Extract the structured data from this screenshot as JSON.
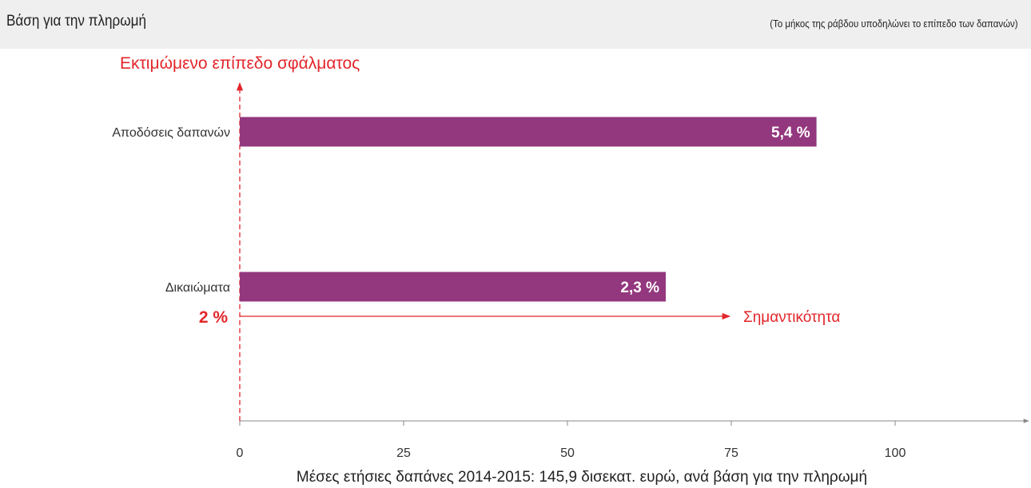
{
  "header": {
    "title": "Βάση για την πληρωμή",
    "note": "(Το μήκος της ράβδου υποδηλώνει το επίπεδο των δαπανών)"
  },
  "chart_data": {
    "type": "bar",
    "orientation": "horizontal",
    "categories": [
      "Αποδόσεις δαπανών",
      "Δικαιώματα"
    ],
    "values": [
      88,
      65
    ],
    "bar_labels": [
      "5,4 %",
      "2,3 %"
    ],
    "xlabel": "Μέσες ετήσιες δαπάνες 2014-2015:  145,9 δισεκατ. ευρώ, ανά βάση για την πληρωμή",
    "ylabel": "Εκτιμώμενο επίπεδο σφάλματος",
    "xlim": [
      0,
      120
    ],
    "xticks": [
      "0",
      "25",
      "50",
      "75",
      "100"
    ],
    "threshold": {
      "label": "2 %",
      "arrow_label": "Σημαντικότητα"
    },
    "grid": false,
    "colors": {
      "bar": "#93377e",
      "accent": "#e2262b",
      "axis": "#888888"
    }
  }
}
